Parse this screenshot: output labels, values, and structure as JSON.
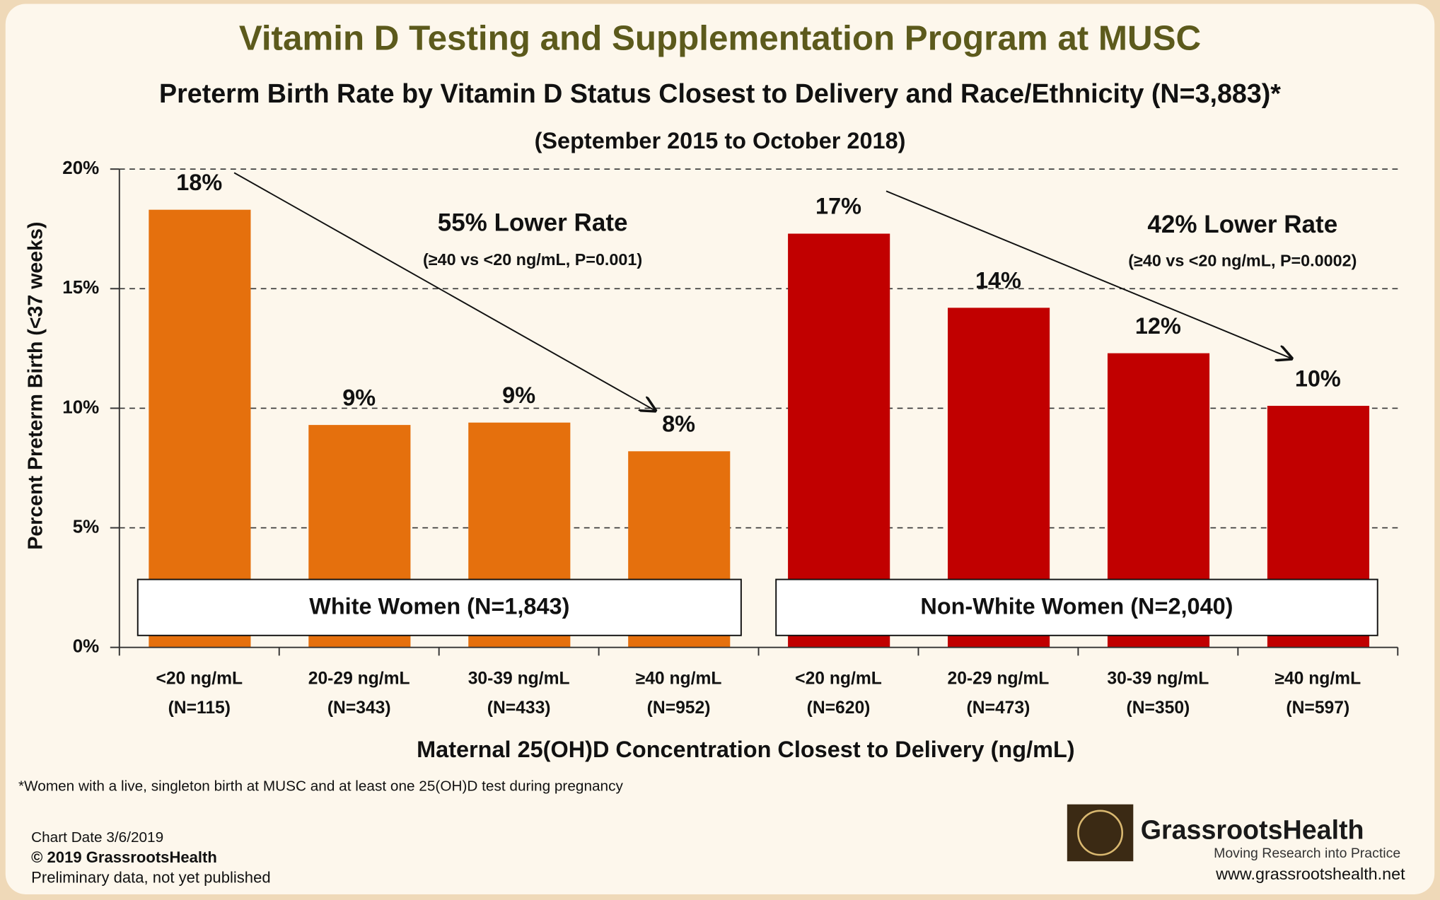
{
  "chart_data": {
    "type": "bar",
    "title": "Vitamin D Testing and Supplementation Program at MUSC",
    "subtitle": "Preterm Birth Rate by Vitamin D Status Closest to Delivery and Race/Ethnicity (N=3,883)*",
    "date_range": "(September 2015 to October 2018)",
    "y_label": "Percent Preterm Birth (<37 weeks)",
    "x_label": "Maternal 25(OH)D Concentration Closest to Delivery (ng/mL)",
    "categories": [
      "<20 ng/mL",
      "20-29 ng/mL",
      "30-39 ng/mL",
      "≥40 ng/mL",
      "<20 ng/mL",
      "20-29 ng/mL",
      "30-39 ng/mL",
      "≥40 ng/mL"
    ],
    "category_counts": [
      "(N=115)",
      "(N=343)",
      "(N=433)",
      "(N=952)",
      "(N=620)",
      "(N=473)",
      "(N=350)",
      "(N=597)"
    ],
    "values": [
      18.3,
      9.3,
      9.4,
      8.2,
      17.3,
      14.2,
      12.3,
      10.1
    ],
    "value_labels": [
      "18%",
      "9%",
      "9%",
      "8%",
      "17%",
      "14%",
      "12%",
      "10%"
    ],
    "colors": [
      "#e5700d",
      "#e5700d",
      "#e5700d",
      "#e5700d",
      "#c10000",
      "#c10000",
      "#c10000",
      "#c10000"
    ],
    "groups": [
      {
        "label": "White Women (N=1,843)",
        "reduction": "55% Lower Rate",
        "comparison": "(≥40 vs <20 ng/mL, P=0.001)"
      },
      {
        "label": "Non-White Women (N=2,040)",
        "reduction": "42% Lower Rate",
        "comparison": "(≥40 vs <20 ng/mL, P=0.0002)"
      }
    ],
    "ylim": [
      0,
      20
    ],
    "yticks": [
      {
        "value": 0,
        "label": "0%"
      },
      {
        "value": 5,
        "label": "5%"
      },
      {
        "value": 10,
        "label": "10%"
      },
      {
        "value": 15,
        "label": "15%"
      },
      {
        "value": 20,
        "label": "20%"
      }
    ],
    "grid": true
  },
  "footer": {
    "footnote": "*Women with a live, singleton birth at MUSC and at least one 25(OH)D test during pregnancy",
    "chart_date": "Chart Date 3/6/2019",
    "copyright": "© 2019 GrassrootsHealth",
    "note": "Preliminary data, not yet published",
    "brand": "GrassrootsHealth",
    "tagline": "Moving Research into Practice",
    "url": "www.grassrootshealth.net"
  }
}
